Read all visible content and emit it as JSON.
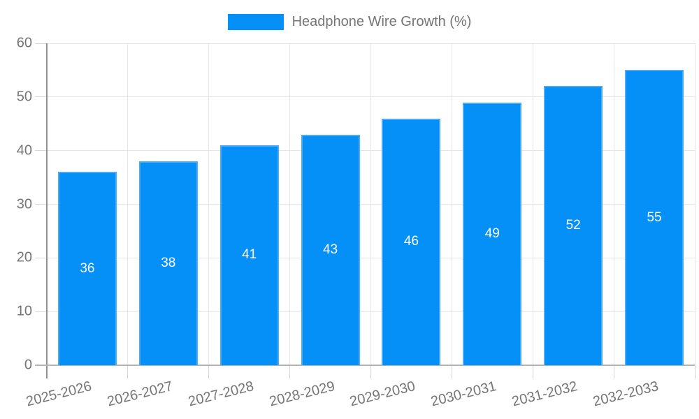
{
  "legend": {
    "label": "Headphone Wire Growth (%)"
  },
  "chart_data": {
    "type": "bar",
    "title": "Headphone Wire Growth (%)",
    "xlabel": "",
    "ylabel": "",
    "categories": [
      "2025-2026",
      "2026-2027",
      "2027-2028",
      "2028-2029",
      "2029-2030",
      "2030-2031",
      "2031-2032",
      "2032-2033"
    ],
    "values": [
      36,
      38,
      41,
      43,
      46,
      49,
      52,
      55
    ],
    "ylim": [
      0,
      60
    ],
    "yticks": [
      0,
      10,
      20,
      30,
      40,
      50,
      60
    ],
    "grid": true,
    "legend_position": "top-center",
    "bar_value_labels_inside": true,
    "colors": {
      "bar_fill": "#0590f8",
      "bar_border": "#4babf7",
      "value_label": "#ffffff",
      "axis_text": "#757575",
      "grid_line": "#e5e5e5",
      "tick_line": "#d6d6d6",
      "y_axis_line": "#919191",
      "x_axis_line": "#b5b5b5",
      "background": "#ffffff"
    }
  }
}
